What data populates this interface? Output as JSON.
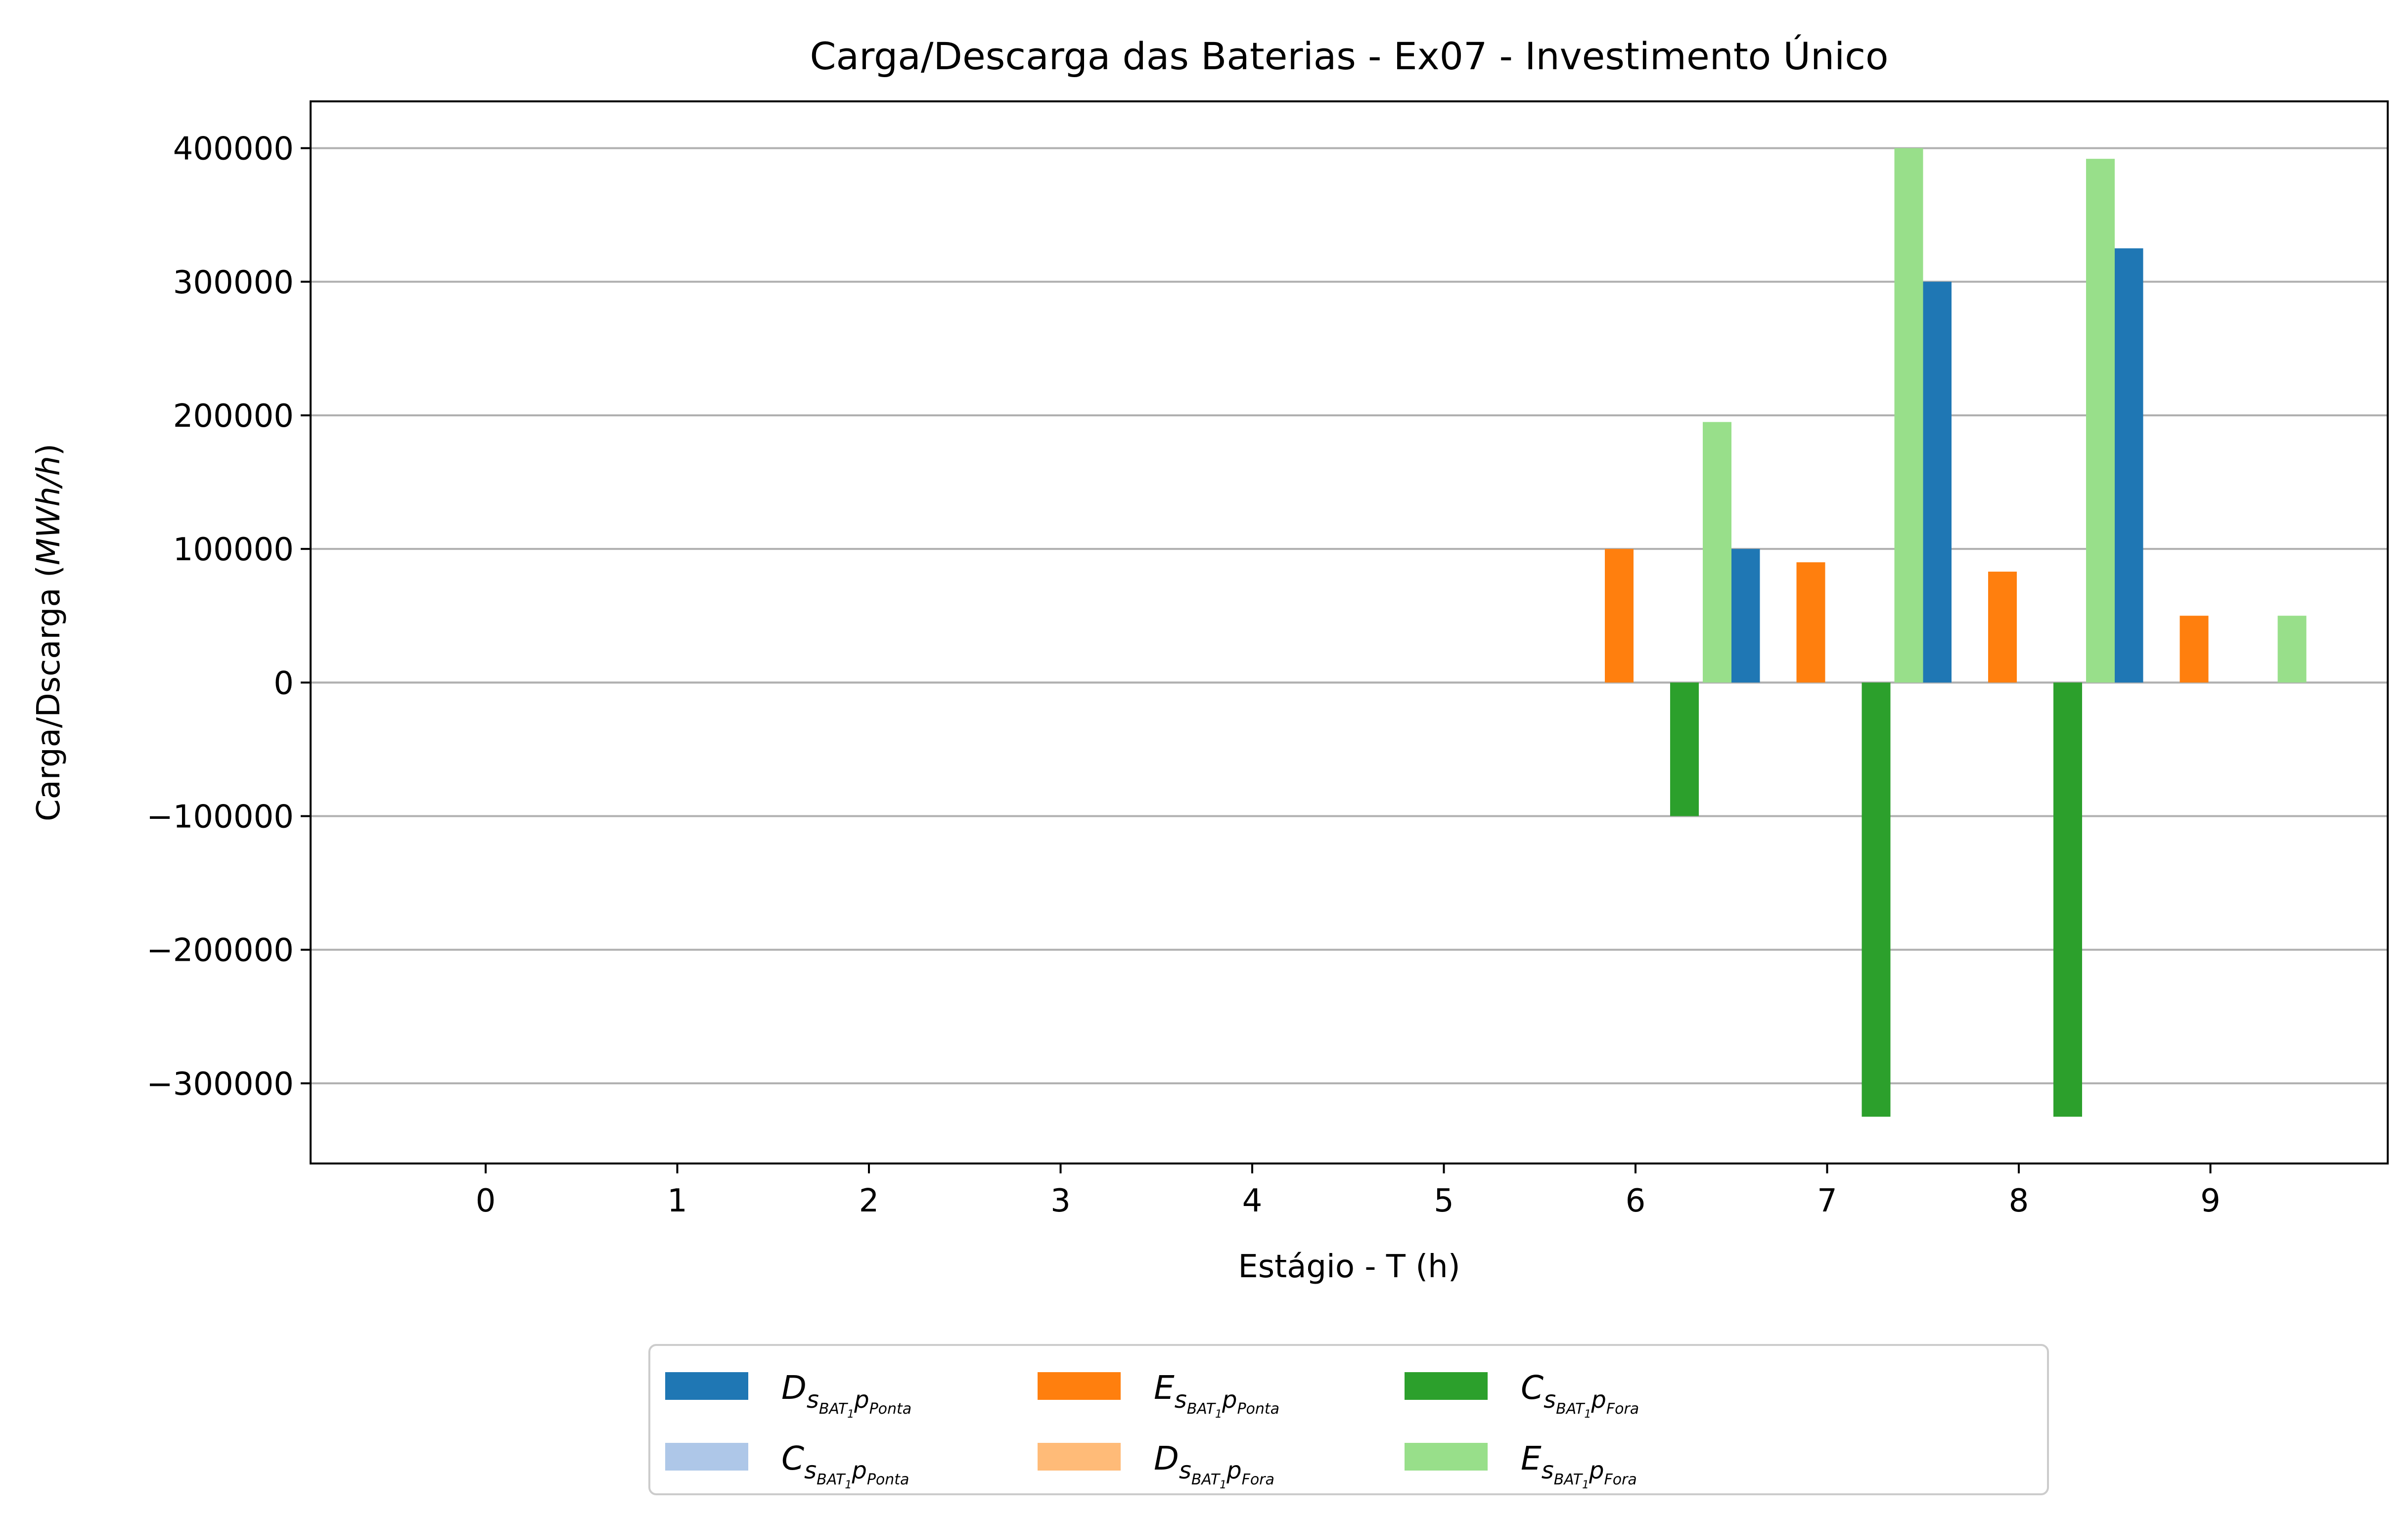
{
  "chart_data": {
    "type": "bar",
    "title": "Carga/Descarga das Baterias - Ex07 - Investimento Único",
    "xlabel": "Estágio - T (h)",
    "ylabel": "Carga/Dscarga (MWh/h)",
    "ylabel_parts": {
      "prefix": "Carga/Dscarga (",
      "unit": "MWh/h",
      "suffix": ")"
    },
    "categories": [
      0,
      1,
      2,
      3,
      4,
      5,
      6,
      7,
      8,
      9
    ],
    "ylim": [
      -360000,
      435000
    ],
    "yticks": [
      -300000,
      -200000,
      -100000,
      0,
      100000,
      200000,
      300000,
      400000
    ],
    "ytick_labels": [
      "−300000",
      "−200000",
      "−100000",
      "0",
      "100000",
      "200000",
      "300000",
      "400000"
    ],
    "grid": "horizontal",
    "legend_position": "below",
    "series": [
      {
        "name": "D_{s_{BAT_1}p_{Ponta}}",
        "legend": {
          "main": "D",
          "sub": "s",
          "subsub": "BAT",
          "subsubsub": "1",
          "sub2": "p",
          "sub2sub": "Ponta"
        },
        "color": "#1f77b4",
        "values": [
          0,
          0,
          0,
          0,
          0,
          0,
          0,
          100000,
          300000,
          325000
        ]
      },
      {
        "name": "C_{s_{BAT_1}p_{Ponta}}",
        "legend": {
          "main": "C",
          "sub": "s",
          "subsub": "BAT",
          "subsubsub": "1",
          "sub2": "p",
          "sub2sub": "Ponta"
        },
        "color": "#aec7e8",
        "values": [
          0,
          0,
          0,
          0,
          0,
          0,
          0,
          0,
          0,
          0
        ]
      },
      {
        "name": "E_{s_{BAT_1}p_{Ponta}}",
        "legend": {
          "main": "E",
          "sub": "s",
          "subsub": "BAT",
          "subsubsub": "1",
          "sub2": "p",
          "sub2sub": "Ponta"
        },
        "color": "#ff7f0e",
        "values": [
          0,
          0,
          0,
          0,
          0,
          0,
          100000,
          90000,
          83000,
          50000
        ]
      },
      {
        "name": "D_{s_{BAT_1}p_{Fora}}",
        "legend": {
          "main": "D",
          "sub": "s",
          "subsub": "BAT",
          "subsubsub": "1",
          "sub2": "p",
          "sub2sub": "Fora"
        },
        "color": "#ffbb78",
        "values": [
          0,
          0,
          0,
          0,
          0,
          0,
          0,
          0,
          0,
          0
        ]
      },
      {
        "name": "C_{s_{BAT_1}p_{Fora}}",
        "legend": {
          "main": "C",
          "sub": "s",
          "subsub": "BAT",
          "subsubsub": "1",
          "sub2": "p",
          "sub2sub": "Fora"
        },
        "color": "#2ca02c",
        "values": [
          0,
          0,
          0,
          0,
          0,
          0,
          -100000,
          -325000,
          -325000,
          0
        ]
      },
      {
        "name": "E_{s_{BAT_1}p_{Fora}}",
        "legend": {
          "main": "E",
          "sub": "s",
          "subsub": "BAT",
          "subsubsub": "1",
          "sub2": "p",
          "sub2sub": "Fora"
        },
        "color": "#98df8a",
        "values": [
          0,
          0,
          0,
          0,
          0,
          0,
          195000,
          400000,
          392000,
          50000
        ]
      }
    ]
  }
}
